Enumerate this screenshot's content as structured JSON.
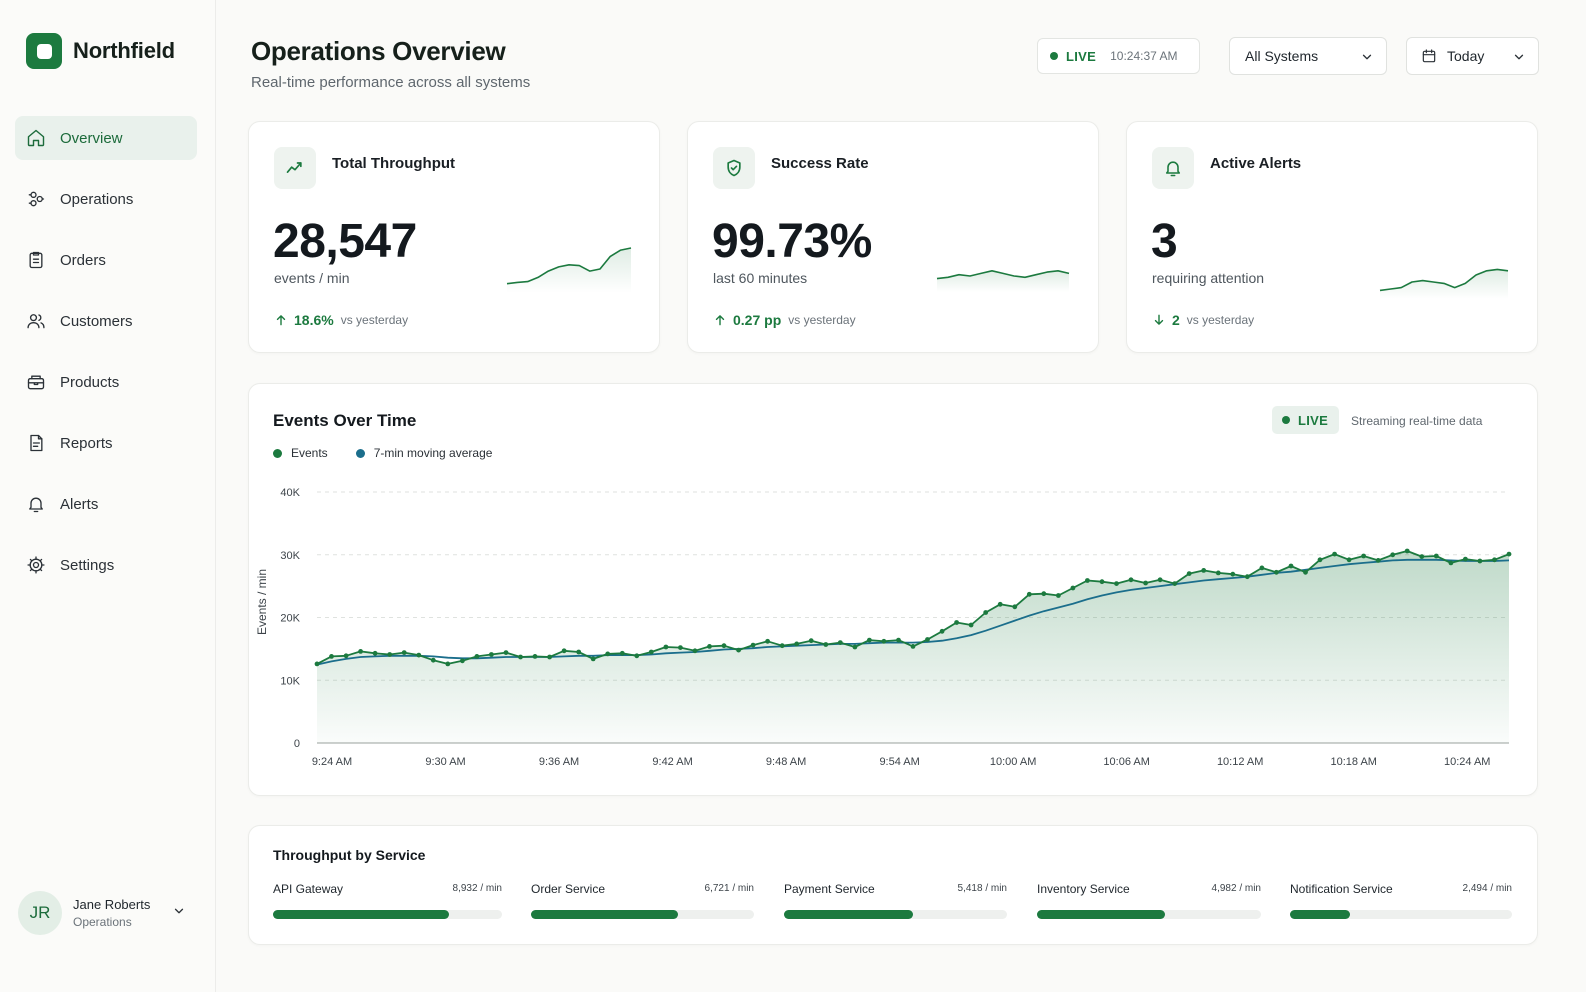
{
  "brand": {
    "name": "Northfield"
  },
  "sidebar": {
    "items": [
      {
        "label": "Overview",
        "icon": "home-icon",
        "active": true
      },
      {
        "label": "Operations",
        "icon": "operations-icon"
      },
      {
        "label": "Orders",
        "icon": "clipboard-icon"
      },
      {
        "label": "Customers",
        "icon": "users-icon"
      },
      {
        "label": "Products",
        "icon": "box-icon"
      },
      {
        "label": "Reports",
        "icon": "report-icon"
      },
      {
        "label": "Alerts",
        "icon": "bell-icon"
      },
      {
        "label": "Settings",
        "icon": "gear-icon"
      }
    ],
    "user": {
      "initials": "JR",
      "name": "Jane Roberts",
      "role": "Operations"
    }
  },
  "header": {
    "title": "Operations Overview",
    "subtitle": "Real-time performance across all systems",
    "live_label": "LIVE",
    "live_time": "10:24:37 AM",
    "system_filter": "All Systems",
    "date_filter": "Today"
  },
  "kpis": [
    {
      "title": "Total Throughput",
      "icon": "trend-icon",
      "value": "28,547",
      "unit": "events / min",
      "delta": "18.6%",
      "delta_direction": "up",
      "compare": "vs yesterday",
      "spark": [
        0.15,
        0.18,
        0.2,
        0.3,
        0.45,
        0.55,
        0.6,
        0.58,
        0.45,
        0.5,
        0.8,
        0.95,
        1.0
      ]
    },
    {
      "title": "Success Rate",
      "icon": "shield-check-icon",
      "value": "99.73%",
      "unit": "last 60 minutes",
      "delta": "0.27 pp",
      "delta_direction": "up",
      "compare": "vs yesterday",
      "spark": [
        0.4,
        0.45,
        0.55,
        0.5,
        0.6,
        0.7,
        0.6,
        0.5,
        0.45,
        0.55,
        0.65,
        0.7,
        0.6
      ]
    },
    {
      "title": "Active Alerts",
      "icon": "bell-icon",
      "value": "3",
      "unit": "requiring attention",
      "delta": "2",
      "delta_direction": "down",
      "compare": "vs yesterday",
      "spark": [
        0.2,
        0.25,
        0.3,
        0.5,
        0.55,
        0.5,
        0.45,
        0.3,
        0.45,
        0.75,
        0.9,
        0.95,
        0.9
      ]
    }
  ],
  "events_card": {
    "title": "Events Over Time",
    "live_label": "LIVE",
    "stream_text": "Streaming real-time data"
  },
  "colors": {
    "events": "#1c7a3f",
    "moving_average": "#1b6e8c",
    "accent": "#1c7a3f"
  },
  "chart_data": {
    "type": "line",
    "title": "Events Over Time",
    "xlabel": "",
    "ylabel": "Events / min",
    "ylim": [
      0,
      40000
    ],
    "y_ticks": [
      "0",
      "10K",
      "20K",
      "30K",
      "40K"
    ],
    "x_ticks": [
      "9:24 AM",
      "9:30 AM",
      "9:36 AM",
      "9:42 AM",
      "9:48 AM",
      "9:54 AM",
      "10:00 AM",
      "10:06 AM",
      "10:12 AM",
      "10:18 AM",
      "10:24 AM"
    ],
    "x_start": "9:24 AM",
    "x_end": "10:27 AM",
    "grid": true,
    "legend_position": "top-left",
    "series": [
      {
        "name": "Events",
        "values": [
          12600,
          13800,
          13900,
          14600,
          14300,
          14100,
          14400,
          14000,
          13200,
          12600,
          13100,
          13800,
          14100,
          14400,
          13700,
          13800,
          13700,
          14700,
          14500,
          13400,
          14200,
          14300,
          13900,
          14500,
          15300,
          15200,
          14700,
          15400,
          15500,
          14800,
          15600,
          16200,
          15500,
          15800,
          16300,
          15700,
          16000,
          15300,
          16400,
          16200,
          16400,
          15400,
          16500,
          17800,
          19200,
          18800,
          20800,
          22100,
          21700,
          23700,
          23800,
          23500,
          24700,
          25900,
          25700,
          25400,
          26000,
          25500,
          26000,
          25400,
          27000,
          27500,
          27100,
          26900,
          26500,
          27900,
          27200,
          28200,
          27200,
          29200,
          30100,
          29200,
          29800,
          29100,
          30000,
          30600,
          29700,
          29800,
          28700,
          29300,
          29000,
          29200,
          30100
        ]
      },
      {
        "name": "7-min moving average",
        "values": [
          12500,
          13000,
          13400,
          13700,
          13800,
          13900,
          13900,
          13900,
          13800,
          13600,
          13500,
          13500,
          13600,
          13700,
          13700,
          13700,
          13700,
          13800,
          13900,
          13900,
          14000,
          14000,
          14000,
          14100,
          14300,
          14400,
          14500,
          14700,
          14900,
          15000,
          15100,
          15300,
          15400,
          15500,
          15600,
          15700,
          15800,
          15800,
          15900,
          16000,
          16000,
          16000,
          16100,
          16300,
          16700,
          17200,
          17900,
          18700,
          19500,
          20300,
          21000,
          21600,
          22200,
          22900,
          23500,
          24000,
          24400,
          24700,
          25000,
          25300,
          25600,
          25900,
          26100,
          26300,
          26500,
          26800,
          27100,
          27300,
          27600,
          27900,
          28200,
          28500,
          28700,
          28900,
          29100,
          29200,
          29200,
          29200,
          29100,
          29000,
          29000,
          29000,
          29100
        ]
      }
    ]
  },
  "services": {
    "title": "Throughput by Service",
    "items": [
      {
        "name": "API Gateway",
        "value_label": "8,932 / min",
        "fraction": 0.77
      },
      {
        "name": "Order Service",
        "value_label": "6,721 / min",
        "fraction": 0.66
      },
      {
        "name": "Payment Service",
        "value_label": "5,418 / min",
        "fraction": 0.58
      },
      {
        "name": "Inventory Service",
        "value_label": "4,982 / min",
        "fraction": 0.57
      },
      {
        "name": "Notification Service",
        "value_label": "2,494 / min",
        "fraction": 0.27
      }
    ]
  }
}
